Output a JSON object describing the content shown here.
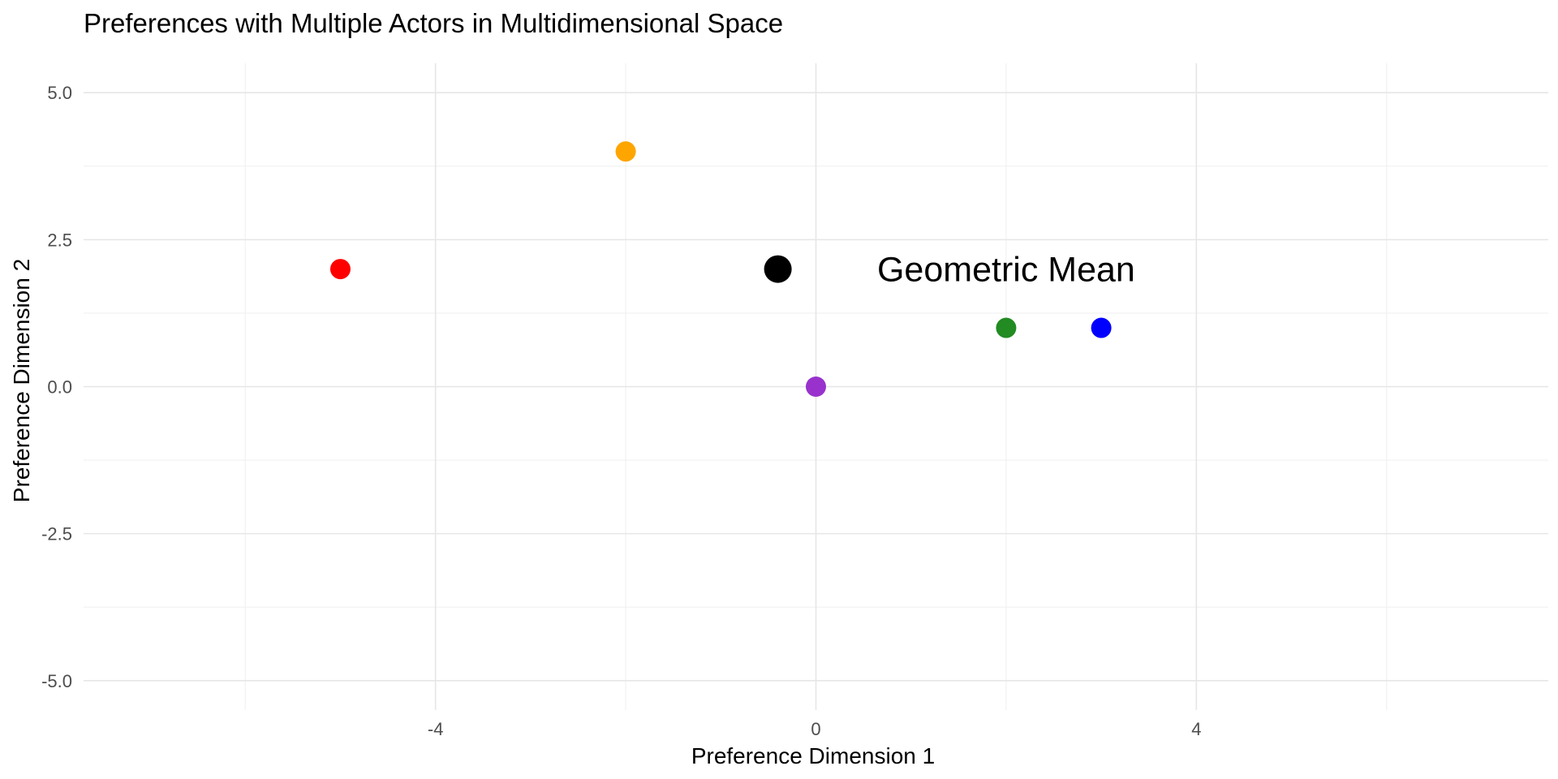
{
  "chart_data": {
    "type": "scatter",
    "title": "Preferences with Multiple Actors in Multidimensional Space",
    "xlabel": "Preference Dimension 1",
    "ylabel": "Preference Dimension 2",
    "xlim": [
      -7.7,
      7.7
    ],
    "ylim": [
      -5.5,
      5.5
    ],
    "x_ticks": [
      -4,
      0,
      4
    ],
    "x_tick_labels": [
      "-4",
      "0",
      "4"
    ],
    "x_minor_ticks": [
      -6,
      -2,
      2,
      6
    ],
    "y_ticks": [
      -5,
      -2.5,
      0,
      2.5,
      5
    ],
    "y_tick_labels": [
      "-5.0",
      "-2.5",
      "0.0",
      "2.5",
      "5.0"
    ],
    "y_minor_ticks": [
      -3.75,
      -1.25,
      1.25,
      3.75
    ],
    "grid": true,
    "legend": "none",
    "points": [
      {
        "x": -5,
        "y": 2,
        "color": "#ff0000"
      },
      {
        "x": -2,
        "y": 4,
        "color": "#ffa500"
      },
      {
        "x": 0,
        "y": 0,
        "color": "#9932cc"
      },
      {
        "x": 2,
        "y": 1,
        "color": "#228b22"
      },
      {
        "x": 3,
        "y": 1,
        "color": "#0000ff"
      }
    ],
    "mean_point": {
      "x": -0.4,
      "y": 2,
      "color": "#000000"
    },
    "annotations": [
      {
        "text": "Geometric Mean",
        "x": 2,
        "y": 2
      }
    ]
  }
}
